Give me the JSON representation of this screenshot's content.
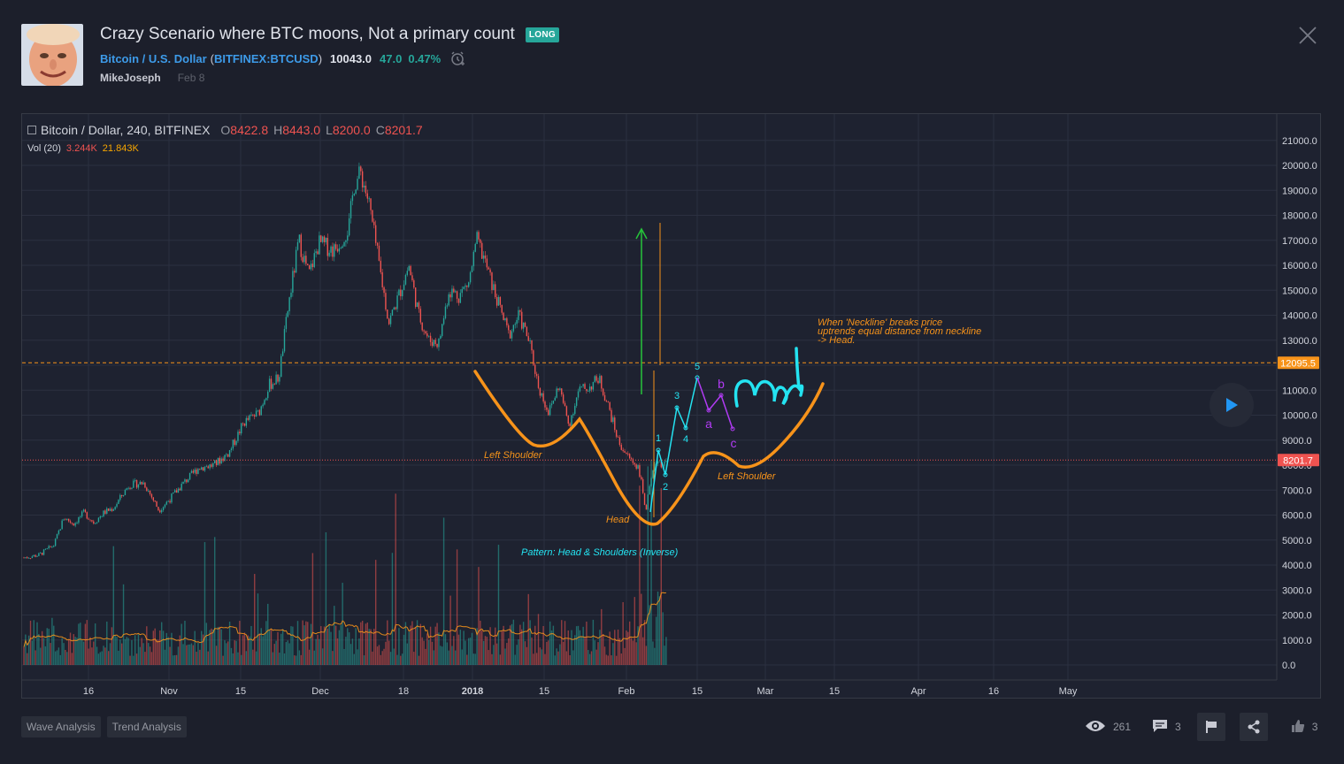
{
  "header": {
    "title": "Crazy Scenario where BTC moons, Not a primary count",
    "badge": "LONG",
    "symbol_name": "Bitcoin / U.S. Dollar",
    "symbol_code": "BITFINEX:BTCUSD",
    "price": "10043.0",
    "change": "47.0",
    "change_pct": "0.47%",
    "author": "MikeJoseph",
    "date": "Feb 8"
  },
  "legend": {
    "symbol": "Bitcoin / Dollar, 240, BITFINEX",
    "o_label": "O",
    "o": "8422.8",
    "h_label": "H",
    "h": "8443.0",
    "l_label": "L",
    "l": "8200.0",
    "c_label": "C",
    "c": "8201.7",
    "vol_label": "Vol (20)",
    "vol_value": "3.244K",
    "vol_ma": "21.843K"
  },
  "chart_data": {
    "type": "candlestick",
    "y_ticks": [
      "21000.0",
      "20000.0",
      "19000.0",
      "18000.0",
      "17000.0",
      "16000.0",
      "15000.0",
      "14000.0",
      "13000.0",
      "12000.0",
      "11000.0",
      "10000.0",
      "9000.0",
      "8000.0",
      "7000.0",
      "6000.0",
      "5000.0",
      "4000.0",
      "3000.0",
      "2000.0",
      "1000.0",
      "0.0"
    ],
    "x_ticks": [
      "16",
      "Nov",
      "15",
      "Dec",
      "18",
      "2018",
      "15",
      "Feb",
      "15",
      "Mar",
      "15",
      "Apr",
      "16",
      "May"
    ],
    "price_labels": {
      "neckline": "12095.5",
      "last": "8201.7"
    },
    "neckline": 12095.5,
    "last_price": 8201.7,
    "price_path": [
      [
        0.0,
        4300
      ],
      [
        1.5,
        4400
      ],
      [
        3.0,
        4800
      ],
      [
        4.0,
        5900
      ],
      [
        5.0,
        5650
      ],
      [
        6.0,
        6100
      ],
      [
        7.0,
        5700
      ],
      [
        8.0,
        6100
      ],
      [
        9.0,
        6300
      ],
      [
        10.5,
        7200
      ],
      [
        12.0,
        7300
      ],
      [
        13.5,
        6200
      ],
      [
        14.5,
        6600
      ],
      [
        16.0,
        7300
      ],
      [
        17.5,
        7900
      ],
      [
        19.0,
        8000
      ],
      [
        20.5,
        8500
      ],
      [
        22.0,
        9700
      ],
      [
        23.5,
        10100
      ],
      [
        24.5,
        11200
      ],
      [
        25.5,
        11500
      ],
      [
        26.5,
        14500
      ],
      [
        27.5,
        17000
      ],
      [
        28.5,
        15600
      ],
      [
        29.5,
        16900
      ],
      [
        31.0,
        16600
      ],
      [
        32.5,
        17500
      ],
      [
        33.0,
        19200
      ],
      [
        33.7,
        19700
      ],
      [
        34.5,
        18500
      ],
      [
        35.5,
        16100
      ],
      [
        36.5,
        13700
      ],
      [
        37.5,
        14800
      ],
      [
        38.5,
        16000
      ],
      [
        39.5,
        14000
      ],
      [
        40.5,
        13000
      ],
      [
        41.5,
        12900
      ],
      [
        42.5,
        15000
      ],
      [
        43.5,
        14800
      ],
      [
        44.5,
        15300
      ],
      [
        45.3,
        17000
      ],
      [
        46.0,
        16300
      ],
      [
        47.0,
        15000
      ],
      [
        48.5,
        13200
      ],
      [
        49.5,
        14000
      ],
      [
        50.5,
        13000
      ],
      [
        51.5,
        11100
      ],
      [
        52.5,
        10100
      ],
      [
        53.5,
        11200
      ],
      [
        54.5,
        9600
      ],
      [
        55.5,
        11000
      ],
      [
        56.5,
        11100
      ],
      [
        57.5,
        11500
      ],
      [
        58.5,
        10300
      ],
      [
        59.5,
        8900
      ],
      [
        60.5,
        8300
      ],
      [
        61.5,
        7900
      ],
      [
        62.2,
        6200
      ],
      [
        62.7,
        7300
      ],
      [
        63.3,
        8250
      ],
      [
        63.9,
        8000
      ],
      [
        64.4,
        8200
      ]
    ],
    "volume_baseline": 1200,
    "annotations": {
      "neckline_note": "When 'Neckline' breaks price uptrends equal distance from neckline -> Head.",
      "left_shoulder_1": "Left Shoulder",
      "left_shoulder_2": "Left Shoulder",
      "head": "Head",
      "pattern": "Pattern: Head & Shoulders (Inverse)",
      "waves": [
        "1",
        "2",
        "3",
        "4",
        "5"
      ],
      "corrective": [
        "a",
        "b",
        "c"
      ]
    }
  },
  "tags": [
    "Wave Analysis",
    "Trend Analysis"
  ],
  "stats": {
    "views": "261",
    "comments": "3",
    "likes": "3"
  },
  "colors": {
    "bg": "#1e2230",
    "grid": "#2b3040",
    "up": "#26a69a",
    "down": "#ef5350",
    "orange": "#f7931a",
    "cyan": "#24e3f1",
    "purple": "#b13bf4",
    "green": "#26c33a"
  }
}
